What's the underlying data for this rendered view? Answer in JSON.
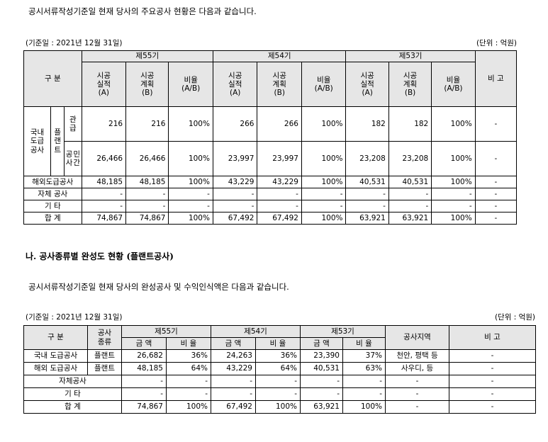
{
  "section1": {
    "intro": "공시서류작성기준일 현재 당사의 주요공사 현황은 다음과 같습니다.",
    "date_note": "(기준일 : 2021년 12월 31일)",
    "unit_note": "(단위 : 억원)",
    "header": {
      "category": "구 분",
      "periods": [
        "제55기",
        "제54기",
        "제53기"
      ],
      "sub": [
        "시공\n실적\n(A)",
        "시공\n계획\n(B)",
        "비율\n(A/B)"
      ],
      "remarks": "비 고"
    },
    "labels": {
      "domestic": "국내\n도급\n공사",
      "plant": "플\n랜\n트",
      "public": "관\n급",
      "private_a": "공\n사",
      "private_b": "민\n간"
    },
    "rows": [
      {
        "values": [
          "216",
          "216",
          "100%",
          "266",
          "266",
          "100%",
          "182",
          "182",
          "100%"
        ],
        "remarks": "-"
      },
      {
        "values": [
          "26,466",
          "26,466",
          "100%",
          "23,997",
          "23,997",
          "100%",
          "23,208",
          "23,208",
          "100%"
        ],
        "remarks": "-"
      },
      {
        "label": "해외도급공사",
        "values": [
          "48,185",
          "48,185",
          "100%",
          "43,229",
          "43,229",
          "100%",
          "40,531",
          "40,531",
          "100%"
        ],
        "remarks": "-"
      },
      {
        "label": "자체 공사",
        "values": [
          "-",
          "-",
          "-",
          "-",
          "-",
          "-",
          "-",
          "-",
          "-"
        ],
        "remarks": "-"
      },
      {
        "label": "기 타",
        "values": [
          "-",
          "-",
          "-",
          "-",
          "-",
          "-",
          "-",
          "-",
          "-"
        ],
        "remarks": "-"
      },
      {
        "label": "합 계",
        "values": [
          "74,867",
          "74,867",
          "100%",
          "67,492",
          "67,492",
          "100%",
          "63,921",
          "63,921",
          "100%"
        ],
        "remarks": "-"
      }
    ]
  },
  "section2": {
    "heading": "나. 공사종류별 완성도 현황 (플랜트공사)",
    "intro": "공시서류작성기준일 현재 당사의 완성공사 및 수익인식액은 다음과 같습니다.",
    "date_note": "(기준일 : 2021년 12월 31일)",
    "unit_note": "(단위 : 억원)",
    "header": {
      "category": "구 분",
      "type": "공사\n종류",
      "periods": [
        "제55기",
        "제54기",
        "제53기"
      ],
      "amount": "금 액",
      "ratio": "비 율",
      "region": "공사지역",
      "remarks": "비 고"
    },
    "rows": [
      {
        "label": "국내 도급공사",
        "type": "플랜트",
        "values": [
          "26,682",
          "36%",
          "24,263",
          "36%",
          "23,390",
          "37%"
        ],
        "region": "천안, 평택 등",
        "remarks": "-"
      },
      {
        "label": "해외 도급공사",
        "type": "플랜트",
        "values": [
          "48,185",
          "64%",
          "43,229",
          "64%",
          "40,531",
          "63%"
        ],
        "region": "사우디, 등",
        "remarks": "-"
      },
      {
        "label": "자체공사",
        "values": [
          "-",
          "-",
          "-",
          "-",
          "-",
          "-"
        ],
        "region": "-",
        "remarks": "-"
      },
      {
        "label": "기 타",
        "values": [
          "-",
          "-",
          "-",
          "-",
          "-",
          "-"
        ],
        "region": "-",
        "remarks": "-"
      },
      {
        "label": "합 계",
        "values": [
          "74,867",
          "100%",
          "67,492",
          "100%",
          "63,921",
          "100%"
        ],
        "region": "-",
        "remarks": "-"
      }
    ]
  }
}
